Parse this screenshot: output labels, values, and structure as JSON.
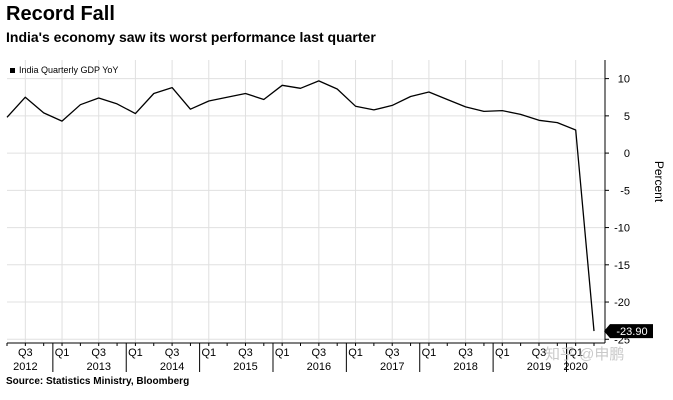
{
  "header": {
    "title": "Record Fall",
    "subtitle": "India's economy saw its worst performance last quarter"
  },
  "footer": {
    "source": "Source: Statistics Ministry, Bloomberg",
    "watermark": "知乎 @申鹏"
  },
  "chart_data": {
    "type": "line",
    "series": [
      {
        "name": "India Quarterly GDP YoY",
        "x": [
          "2012-Q2",
          "2012-Q3",
          "2012-Q4",
          "2013-Q1",
          "2013-Q2",
          "2013-Q3",
          "2013-Q4",
          "2014-Q1",
          "2014-Q2",
          "2014-Q3",
          "2014-Q4",
          "2015-Q1",
          "2015-Q2",
          "2015-Q3",
          "2015-Q4",
          "2016-Q1",
          "2016-Q2",
          "2016-Q3",
          "2016-Q4",
          "2017-Q1",
          "2017-Q2",
          "2017-Q3",
          "2017-Q4",
          "2018-Q1",
          "2018-Q2",
          "2018-Q3",
          "2018-Q4",
          "2019-Q1",
          "2019-Q2",
          "2019-Q3",
          "2019-Q4",
          "2020-Q1",
          "2020-Q2"
        ],
        "values": [
          4.8,
          7.5,
          5.4,
          4.3,
          6.5,
          7.4,
          6.6,
          5.3,
          8.0,
          8.8,
          5.9,
          7.0,
          7.5,
          8.0,
          7.2,
          9.1,
          8.7,
          9.7,
          8.6,
          6.3,
          5.8,
          6.4,
          7.6,
          8.2,
          7.2,
          6.2,
          5.6,
          5.7,
          5.2,
          4.4,
          4.1,
          3.1,
          -23.9
        ],
        "color": "#000000"
      }
    ],
    "xticks": [
      {
        "label": "Q3",
        "x": "2012-Q3"
      },
      {
        "label": "Q1",
        "x": "2013-Q1"
      },
      {
        "label": "Q3",
        "x": "2013-Q3"
      },
      {
        "label": "Q1",
        "x": "2014-Q1"
      },
      {
        "label": "Q3",
        "x": "2014-Q3"
      },
      {
        "label": "Q1",
        "x": "2015-Q1"
      },
      {
        "label": "Q3",
        "x": "2015-Q3"
      },
      {
        "label": "Q1",
        "x": "2016-Q1"
      },
      {
        "label": "Q3",
        "x": "2016-Q3"
      },
      {
        "label": "Q1",
        "x": "2017-Q1"
      },
      {
        "label": "Q3",
        "x": "2017-Q3"
      },
      {
        "label": "Q1",
        "x": "2018-Q1"
      },
      {
        "label": "Q3",
        "x": "2018-Q3"
      },
      {
        "label": "Q1",
        "x": "2019-Q1"
      },
      {
        "label": "Q3",
        "x": "2019-Q3"
      },
      {
        "label": "Q1",
        "x": "2020-Q1"
      }
    ],
    "year_labels": [
      {
        "label": "2012",
        "x": "2012-Q3"
      },
      {
        "label": "2013",
        "x": "2013-Q3"
      },
      {
        "label": "2014",
        "x": "2014-Q3"
      },
      {
        "label": "2015",
        "x": "2015-Q3"
      },
      {
        "label": "2016",
        "x": "2016-Q3"
      },
      {
        "label": "2017",
        "x": "2017-Q3"
      },
      {
        "label": "2018",
        "x": "2018-Q3"
      },
      {
        "label": "2019",
        "x": "2019-Q3"
      },
      {
        "label": "2020",
        "x": "2020-Q1"
      }
    ],
    "ylabel": "Percent",
    "yticks": [
      10,
      5,
      0,
      -5,
      -10,
      -15,
      -20,
      -25
    ],
    "ylim": [
      -25.5,
      12.5
    ],
    "y_axis_position": "right",
    "grid": true,
    "legend": "top-left",
    "callout": {
      "label": "-23.90",
      "value": -23.9
    }
  }
}
